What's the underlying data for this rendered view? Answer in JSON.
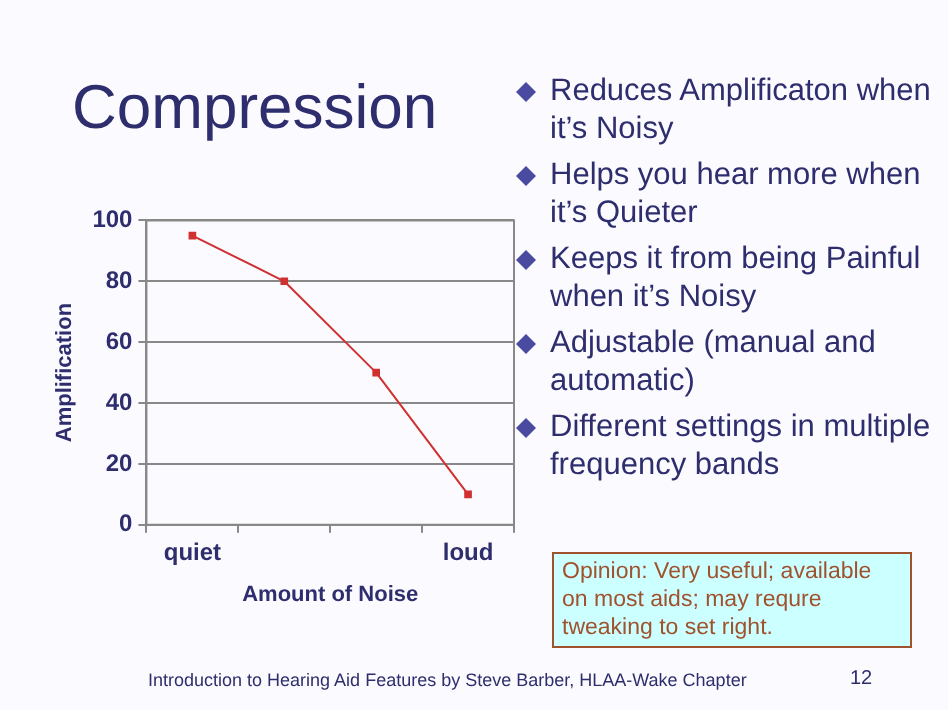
{
  "chart_data": {
    "type": "line",
    "title": "Compression",
    "xlabel": "Amount of Noise",
    "ylabel": "Amplification",
    "categories": [
      "quiet",
      null,
      null,
      "loud"
    ],
    "series": [
      {
        "color": "#d03030",
        "values": [
          95,
          80,
          50,
          10
        ]
      }
    ],
    "ylim": [
      0,
      100
    ],
    "yticks": [
      0,
      20,
      40,
      60,
      80,
      100
    ],
    "grid": "y",
    "marker": "square",
    "legend": false,
    "annotations": [
      "Reduces Amplificaton when it’s Noisy",
      "Helps you hear more when it’s Quieter",
      "Keeps it  from being Painful when it’s Noisy",
      "Adjustable (manual and automatic)",
      "Different settings in multiple frequency bands",
      "Opinion: Very useful; available on most aids; may requre tweaking to set right.",
      "Introduction to Hearing Aid Features by Steve Barber, HLAA-Wake Chapter",
      "12"
    ]
  }
}
